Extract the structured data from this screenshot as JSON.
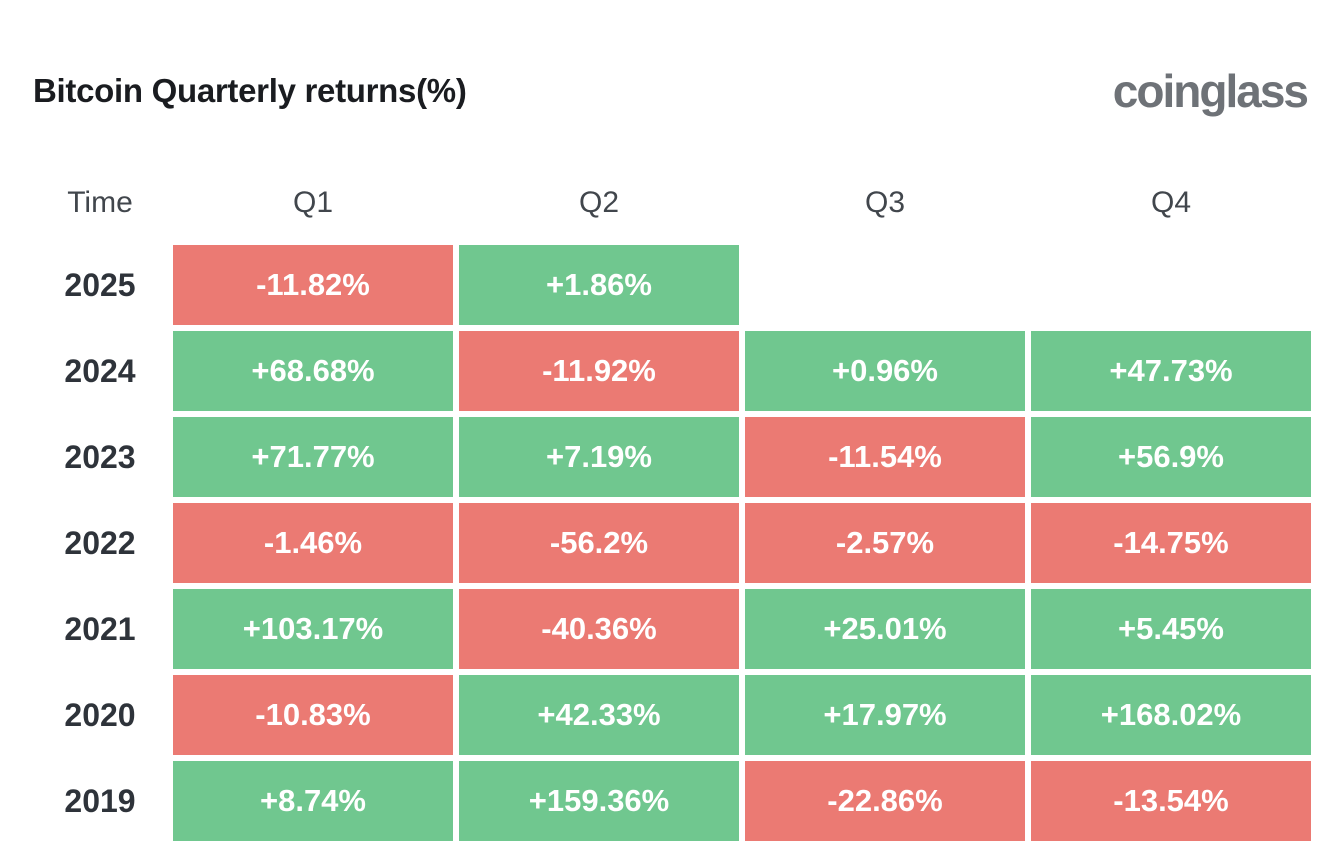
{
  "title": "Bitcoin Quarterly returns(%)",
  "logo": "coinglass",
  "colors": {
    "background": "#ffffff",
    "title_text": "#1a1c20",
    "logo_text": "#6e7277",
    "header_text": "#41464c",
    "year_text": "#2e333a",
    "cell_text": "#ffffff",
    "positive_bg": "#70c78f",
    "negative_bg": "#eb7a73"
  },
  "chart_data": {
    "type": "heatmap",
    "title": "Bitcoin Quarterly returns(%)",
    "legend": "green cell = positive quarterly return, red cell = negative quarterly return, blank = no data yet",
    "columns": [
      "Time",
      "Q1",
      "Q2",
      "Q3",
      "Q4"
    ],
    "rows": [
      {
        "year": "2025",
        "values": [
          "-11.82%",
          "+1.86%",
          "",
          ""
        ],
        "numeric": [
          -11.82,
          1.86,
          null,
          null
        ]
      },
      {
        "year": "2024",
        "values": [
          "+68.68%",
          "-11.92%",
          "+0.96%",
          "+47.73%"
        ],
        "numeric": [
          68.68,
          -11.92,
          0.96,
          47.73
        ]
      },
      {
        "year": "2023",
        "values": [
          "+71.77%",
          "+7.19%",
          "-11.54%",
          "+56.9%"
        ],
        "numeric": [
          71.77,
          7.19,
          -11.54,
          56.9
        ]
      },
      {
        "year": "2022",
        "values": [
          "-1.46%",
          "-56.2%",
          "-2.57%",
          "-14.75%"
        ],
        "numeric": [
          -1.46,
          -56.2,
          -2.57,
          -14.75
        ]
      },
      {
        "year": "2021",
        "values": [
          "+103.17%",
          "-40.36%",
          "+25.01%",
          "+5.45%"
        ],
        "numeric": [
          103.17,
          -40.36,
          25.01,
          5.45
        ]
      },
      {
        "year": "2020",
        "values": [
          "-10.83%",
          "+42.33%",
          "+17.97%",
          "+168.02%"
        ],
        "numeric": [
          -10.83,
          42.33,
          17.97,
          168.02
        ]
      },
      {
        "year": "2019",
        "values": [
          "+8.74%",
          "+159.36%",
          "-22.86%",
          "-13.54%"
        ],
        "numeric": [
          8.74,
          159.36,
          -22.86,
          -13.54
        ]
      }
    ]
  }
}
